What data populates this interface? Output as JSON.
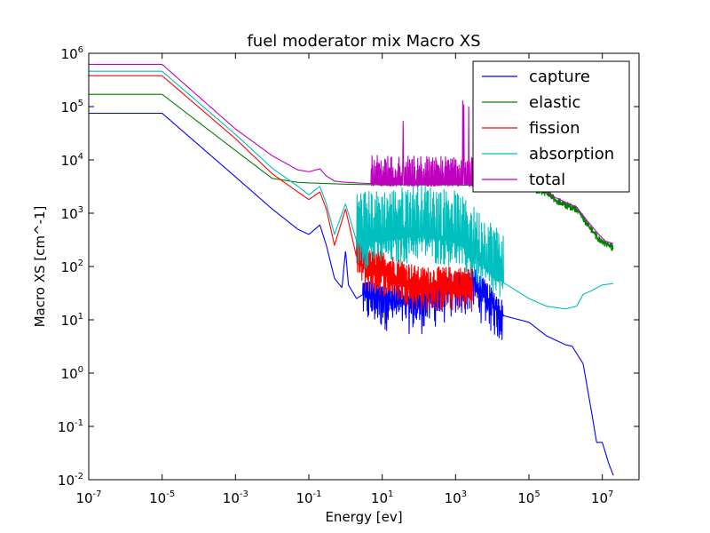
{
  "chart_data": {
    "type": "line",
    "title": "fuel moderator mix Macro XS",
    "xlabel": "Energy [ev]",
    "ylabel": "Macro XS [cm^-1]",
    "xscale": "log",
    "yscale": "log",
    "xlim": [
      1e-07,
      100000000.0
    ],
    "ylim": [
      0.01,
      1000000.0
    ],
    "x_ticks": [
      {
        "base": "10",
        "exp": "-7",
        "value": 1e-07
      },
      {
        "base": "10",
        "exp": "-5",
        "value": 1e-05
      },
      {
        "base": "10",
        "exp": "-3",
        "value": 0.001
      },
      {
        "base": "10",
        "exp": "-1",
        "value": 0.1
      },
      {
        "base": "10",
        "exp": "1",
        "value": 10.0
      },
      {
        "base": "10",
        "exp": "3",
        "value": 1000.0
      },
      {
        "base": "10",
        "exp": "5",
        "value": 100000.0
      },
      {
        "base": "10",
        "exp": "7",
        "value": 10000000.0
      }
    ],
    "y_ticks": [
      {
        "base": "10",
        "exp": "-2",
        "value": 0.01
      },
      {
        "base": "10",
        "exp": "-1",
        "value": 0.1
      },
      {
        "base": "10",
        "exp": "0",
        "value": 1.0
      },
      {
        "base": "10",
        "exp": "1",
        "value": 10.0
      },
      {
        "base": "10",
        "exp": "2",
        "value": 100.0
      },
      {
        "base": "10",
        "exp": "3",
        "value": 1000.0
      },
      {
        "base": "10",
        "exp": "4",
        "value": 10000.0
      },
      {
        "base": "10",
        "exp": "5",
        "value": 100000.0
      },
      {
        "base": "10",
        "exp": "6",
        "value": 1000000.0
      }
    ],
    "legend_position": "top-right",
    "series": [
      {
        "name": "capture",
        "color": "#0000ff",
        "x": [
          1e-07,
          1e-05,
          0.001,
          0.01,
          0.05,
          0.1,
          0.2,
          0.3,
          0.5,
          0.8,
          1,
          1.2,
          2,
          3,
          10.0,
          100.0,
          1000.0,
          3000.0,
          10000.0,
          20000.0,
          100000.0,
          300000.0,
          1000000.0,
          1500000.0,
          3000000.0,
          5000000.0,
          7000000.0,
          10000000.0,
          15000000.0,
          20000000.0
        ],
        "y": [
          75000,
          75000,
          4800,
          1200,
          500,
          400,
          600,
          250,
          60,
          40,
          200,
          45,
          25,
          30,
          25,
          20,
          40,
          50,
          20,
          12,
          9,
          5,
          3.4,
          3.2,
          1.5,
          0.2,
          0.05,
          0.05,
          0.02,
          0.012
        ],
        "noise": {
          "x_from": 3,
          "x_to": 20000.0,
          "low": 0.25,
          "high": 2.0
        }
      },
      {
        "name": "elastic",
        "color": "#008000",
        "x": [
          1e-07,
          1e-05,
          0.001,
          0.01,
          0.05,
          0.1,
          1,
          10.0,
          100.0,
          1000.0,
          10000.0,
          100000.0,
          300000.0,
          500000.0,
          1000000.0,
          2000000.0,
          4000000.0,
          8000000.0,
          12000000.0,
          20000000.0
        ],
        "y": [
          170000,
          170000,
          15000,
          4500,
          3800,
          3700,
          3500,
          3400,
          3400,
          3400,
          3300,
          3000,
          2400,
          1800,
          1400,
          1200,
          600,
          320,
          270,
          220
        ],
        "noise": {
          "x_from": 100000.0,
          "x_to": 20000000.0,
          "low": 0.85,
          "high": 1.2
        }
      },
      {
        "name": "fission",
        "color": "#ff0000",
        "x": [
          1e-07,
          1e-05,
          0.001,
          0.01,
          0.05,
          0.1,
          0.2,
          0.3,
          0.5,
          1,
          2,
          5,
          10.0,
          100.0,
          1000.0,
          3000.0
        ],
        "y": [
          380000,
          380000,
          25000,
          5500,
          2500,
          1800,
          2500,
          1200,
          250,
          1200,
          150,
          80,
          80,
          40,
          40,
          40
        ],
        "noise": {
          "x_from": 2,
          "x_to": 3000.0,
          "low": 0.35,
          "high": 2.5
        }
      },
      {
        "name": "absorption",
        "color": "#00bfbf",
        "x": [
          1e-07,
          1e-05,
          0.001,
          0.01,
          0.05,
          0.1,
          0.2,
          0.3,
          0.5,
          1,
          2,
          5,
          10.0,
          100.0,
          1000.0,
          20000.0,
          100000.0,
          300000.0,
          1000000.0,
          2000000.0,
          3000000.0,
          5000000.0,
          10000000.0,
          20000000.0
        ],
        "y": [
          460000,
          460000,
          30000,
          7000,
          3200,
          2200,
          3200,
          1500,
          400,
          1500,
          300,
          300,
          300,
          400,
          300,
          50,
          25,
          18,
          16,
          18,
          30,
          35,
          45,
          48
        ],
        "noise": {
          "x_from": 2,
          "x_to": 20000.0,
          "low": 0.3,
          "high": 9.0
        }
      },
      {
        "name": "total",
        "color": "#bf00bf",
        "x": [
          1e-07,
          1e-05,
          0.001,
          0.01,
          0.05,
          0.1,
          0.2,
          0.3,
          0.5,
          1,
          10.0,
          100.0,
          1000.0,
          10000.0,
          100000.0,
          300000.0,
          500000.0,
          1000000.0,
          2000000.0,
          4000000.0,
          8000000.0,
          12000000.0,
          20000000.0
        ],
        "y": [
          620000,
          620000,
          38000,
          12000,
          6500,
          6000,
          6800,
          5000,
          4000,
          3800,
          3500,
          3500,
          3500,
          3500,
          3200,
          2600,
          2000,
          1600,
          1300,
          700,
          400,
          300,
          270
        ],
        "noise": {
          "x_from": 5,
          "x_to": 20000.0,
          "low": 0.9,
          "high": 3.5
        }
      }
    ]
  }
}
